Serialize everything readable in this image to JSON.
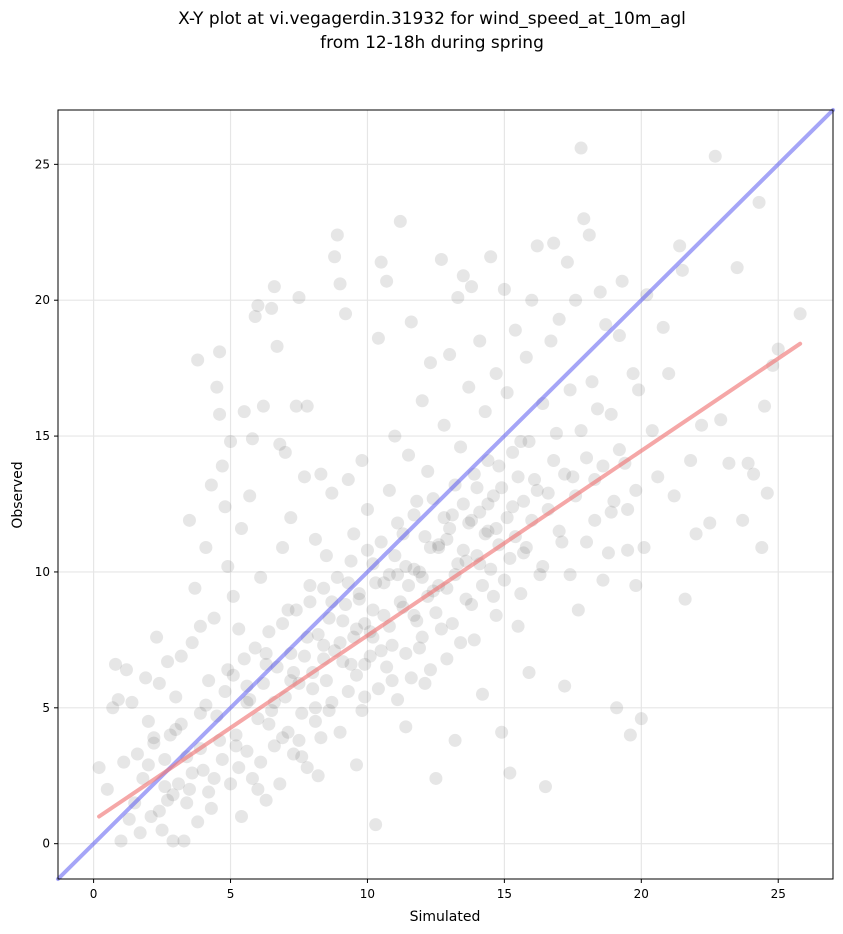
{
  "chart_data": {
    "type": "scatter",
    "title_lines": [
      "X-Y plot at vi.vegagerdin.31932 for wind_speed_at_10m_agl",
      "from 12-18h during spring"
    ],
    "xlabel": "Simulated",
    "ylabel": "Observed",
    "xlim": [
      -1.3,
      27.0
    ],
    "ylim": [
      -1.3,
      27.0
    ],
    "xticks": [
      0,
      5,
      10,
      15,
      20,
      25
    ],
    "yticks": [
      0,
      5,
      10,
      15,
      20,
      25
    ],
    "grid": true,
    "point_color": "#555555",
    "point_opacity": 0.15,
    "identity_line": {
      "color": "#4b4bf0",
      "from": [
        -1.3,
        -1.3
      ],
      "to": [
        27.0,
        27.0
      ]
    },
    "fit_line": {
      "color": "#f07878",
      "from": [
        0.2,
        1.0
      ],
      "to": [
        25.8,
        18.4
      ]
    },
    "points": [
      [
        0.2,
        2.8
      ],
      [
        0.5,
        2.0
      ],
      [
        0.7,
        5.0
      ],
      [
        0.8,
        6.6
      ],
      [
        0.9,
        5.3
      ],
      [
        1.0,
        0.1
      ],
      [
        1.1,
        3.0
      ],
      [
        1.2,
        6.4
      ],
      [
        1.4,
        5.2
      ],
      [
        1.5,
        1.5
      ],
      [
        1.6,
        3.3
      ],
      [
        1.8,
        2.4
      ],
      [
        1.9,
        6.1
      ],
      [
        2.0,
        4.5
      ],
      [
        2.1,
        1.0
      ],
      [
        2.2,
        3.7
      ],
      [
        2.3,
        7.6
      ],
      [
        2.4,
        5.9
      ],
      [
        2.5,
        0.5
      ],
      [
        2.6,
        2.1
      ],
      [
        2.7,
        6.7
      ],
      [
        2.8,
        4.0
      ],
      [
        2.9,
        1.8
      ],
      [
        3.0,
        5.4
      ],
      [
        3.2,
        6.9
      ],
      [
        3.3,
        0.1
      ],
      [
        3.4,
        3.2
      ],
      [
        3.5,
        11.9
      ],
      [
        3.6,
        7.4
      ],
      [
        3.7,
        9.4
      ],
      [
        3.8,
        17.8
      ],
      [
        3.9,
        8.0
      ],
      [
        4.0,
        2.7
      ],
      [
        4.1,
        10.9
      ],
      [
        4.2,
        6.0
      ],
      [
        4.3,
        13.2
      ],
      [
        4.4,
        8.3
      ],
      [
        4.5,
        16.8
      ],
      [
        4.6,
        18.1
      ],
      [
        4.6,
        15.8
      ],
      [
        4.7,
        13.9
      ],
      [
        4.8,
        12.4
      ],
      [
        4.9,
        10.2
      ],
      [
        5.0,
        14.8
      ],
      [
        5.1,
        9.1
      ],
      [
        5.2,
        3.6
      ],
      [
        5.3,
        7.9
      ],
      [
        5.4,
        11.6
      ],
      [
        5.5,
        15.9
      ],
      [
        5.6,
        5.2
      ],
      [
        5.7,
        12.8
      ],
      [
        5.8,
        14.9
      ],
      [
        5.9,
        19.4
      ],
      [
        6.0,
        19.8
      ],
      [
        6.1,
        9.8
      ],
      [
        6.2,
        16.1
      ],
      [
        6.3,
        7.0
      ],
      [
        6.4,
        4.4
      ],
      [
        6.5,
        19.7
      ],
      [
        6.6,
        20.5
      ],
      [
        6.7,
        18.3
      ],
      [
        6.8,
        14.7
      ],
      [
        6.9,
        10.9
      ],
      [
        7.0,
        14.4
      ],
      [
        7.1,
        8.6
      ],
      [
        7.2,
        12.0
      ],
      [
        7.3,
        6.3
      ],
      [
        7.4,
        16.1
      ],
      [
        7.5,
        20.1
      ],
      [
        7.6,
        3.2
      ],
      [
        7.7,
        13.5
      ],
      [
        7.8,
        16.1
      ],
      [
        7.9,
        9.5
      ],
      [
        8.0,
        5.7
      ],
      [
        8.1,
        11.2
      ],
      [
        8.2,
        2.5
      ],
      [
        8.3,
        13.6
      ],
      [
        8.4,
        7.3
      ],
      [
        8.5,
        10.6
      ],
      [
        8.6,
        4.9
      ],
      [
        8.7,
        12.9
      ],
      [
        8.8,
        21.6
      ],
      [
        8.9,
        22.4
      ],
      [
        9.0,
        20.6
      ],
      [
        9.1,
        8.2
      ],
      [
        9.2,
        19.5
      ],
      [
        9.3,
        13.4
      ],
      [
        9.4,
        6.6
      ],
      [
        9.5,
        11.4
      ],
      [
        9.6,
        2.9
      ],
      [
        9.7,
        9.0
      ],
      [
        9.8,
        14.1
      ],
      [
        9.9,
        5.4
      ],
      [
        10.0,
        12.3
      ],
      [
        10.1,
        7.8
      ],
      [
        10.2,
        10.3
      ],
      [
        10.3,
        0.7
      ],
      [
        10.4,
        18.6
      ],
      [
        10.5,
        21.4
      ],
      [
        10.6,
        9.6
      ],
      [
        10.7,
        20.7
      ],
      [
        10.8,
        13.0
      ],
      [
        10.9,
        6.0
      ],
      [
        11.0,
        15.0
      ],
      [
        11.1,
        11.8
      ],
      [
        11.2,
        22.9
      ],
      [
        11.3,
        8.7
      ],
      [
        11.4,
        4.3
      ],
      [
        11.5,
        14.3
      ],
      [
        11.6,
        19.2
      ],
      [
        11.7,
        10.1
      ],
      [
        11.8,
        12.6
      ],
      [
        11.9,
        7.2
      ],
      [
        12.0,
        16.3
      ],
      [
        12.1,
        5.9
      ],
      [
        12.2,
        13.7
      ],
      [
        12.3,
        17.7
      ],
      [
        12.4,
        9.3
      ],
      [
        12.5,
        2.4
      ],
      [
        12.6,
        11.0
      ],
      [
        12.7,
        21.5
      ],
      [
        12.8,
        15.4
      ],
      [
        12.9,
        6.8
      ],
      [
        13.0,
        18.0
      ],
      [
        13.1,
        12.1
      ],
      [
        13.2,
        3.8
      ],
      [
        13.3,
        20.1
      ],
      [
        13.4,
        14.6
      ],
      [
        13.5,
        20.9
      ],
      [
        13.6,
        10.4
      ],
      [
        13.7,
        16.8
      ],
      [
        13.8,
        20.5
      ],
      [
        13.9,
        7.5
      ],
      [
        14.0,
        13.1
      ],
      [
        14.1,
        18.5
      ],
      [
        14.2,
        5.5
      ],
      [
        14.3,
        15.9
      ],
      [
        14.4,
        11.5
      ],
      [
        14.5,
        21.6
      ],
      [
        14.6,
        9.1
      ],
      [
        14.7,
        17.3
      ],
      [
        14.8,
        13.9
      ],
      [
        14.9,
        4.1
      ],
      [
        15.0,
        20.4
      ],
      [
        15.1,
        16.6
      ],
      [
        15.2,
        2.6
      ],
      [
        15.3,
        12.4
      ],
      [
        15.4,
        18.9
      ],
      [
        15.5,
        8.0
      ],
      [
        15.6,
        14.8
      ],
      [
        15.7,
        10.7
      ],
      [
        15.8,
        17.9
      ],
      [
        15.9,
        6.3
      ],
      [
        16.0,
        20.0
      ],
      [
        16.1,
        13.4
      ],
      [
        16.2,
        22.0
      ],
      [
        16.3,
        9.9
      ],
      [
        16.4,
        16.2
      ],
      [
        16.5,
        2.1
      ],
      [
        16.6,
        12.9
      ],
      [
        16.7,
        18.5
      ],
      [
        16.8,
        22.1
      ],
      [
        16.9,
        15.1
      ],
      [
        17.0,
        19.3
      ],
      [
        17.1,
        11.1
      ],
      [
        17.2,
        5.8
      ],
      [
        17.3,
        21.4
      ],
      [
        17.4,
        16.7
      ],
      [
        17.5,
        13.5
      ],
      [
        17.6,
        20.0
      ],
      [
        17.7,
        8.6
      ],
      [
        17.8,
        25.6
      ],
      [
        17.9,
        23.0
      ],
      [
        18.0,
        14.2
      ],
      [
        18.1,
        22.4
      ],
      [
        18.2,
        17.0
      ],
      [
        18.3,
        11.9
      ],
      [
        18.4,
        16.0
      ],
      [
        18.5,
        20.3
      ],
      [
        18.6,
        13.9
      ],
      [
        18.7,
        19.1
      ],
      [
        18.8,
        10.7
      ],
      [
        18.9,
        15.8
      ],
      [
        19.0,
        12.6
      ],
      [
        19.1,
        5.0
      ],
      [
        19.2,
        18.7
      ],
      [
        19.3,
        20.7
      ],
      [
        19.4,
        14.0
      ],
      [
        19.5,
        12.3
      ],
      [
        19.6,
        4.0
      ],
      [
        19.7,
        17.3
      ],
      [
        19.8,
        9.5
      ],
      [
        19.9,
        16.7
      ],
      [
        20.0,
        4.6
      ],
      [
        20.1,
        10.9
      ],
      [
        20.2,
        20.2
      ],
      [
        20.4,
        15.2
      ],
      [
        20.6,
        13.5
      ],
      [
        20.8,
        19.0
      ],
      [
        21.0,
        17.3
      ],
      [
        21.2,
        12.8
      ],
      [
        21.4,
        22.0
      ],
      [
        21.5,
        21.1
      ],
      [
        21.6,
        9.0
      ],
      [
        21.8,
        14.1
      ],
      [
        22.0,
        11.4
      ],
      [
        22.2,
        15.4
      ],
      [
        22.5,
        11.8
      ],
      [
        22.7,
        25.3
      ],
      [
        22.9,
        15.6
      ],
      [
        23.2,
        14.0
      ],
      [
        23.5,
        21.2
      ],
      [
        23.7,
        11.9
      ],
      [
        23.9,
        14.0
      ],
      [
        24.1,
        13.6
      ],
      [
        24.3,
        23.6
      ],
      [
        24.4,
        10.9
      ],
      [
        24.5,
        16.1
      ],
      [
        24.6,
        12.9
      ],
      [
        24.8,
        17.6
      ],
      [
        25.0,
        18.2
      ],
      [
        25.8,
        19.5
      ],
      [
        1.3,
        0.9
      ],
      [
        1.7,
        0.4
      ],
      [
        2.0,
        2.9
      ],
      [
        2.4,
        1.2
      ],
      [
        2.6,
        3.1
      ],
      [
        2.9,
        0.1
      ],
      [
        3.1,
        2.2
      ],
      [
        3.2,
        4.4
      ],
      [
        3.4,
        1.5
      ],
      [
        3.6,
        2.6
      ],
      [
        3.8,
        0.8
      ],
      [
        3.9,
        3.5
      ],
      [
        4.1,
        5.1
      ],
      [
        4.2,
        1.9
      ],
      [
        4.4,
        2.4
      ],
      [
        4.5,
        4.7
      ],
      [
        4.7,
        3.1
      ],
      [
        4.8,
        5.6
      ],
      [
        5.0,
        2.2
      ],
      [
        5.1,
        6.2
      ],
      [
        5.2,
        4.0
      ],
      [
        5.4,
        1.0
      ],
      [
        5.5,
        6.8
      ],
      [
        5.6,
        3.4
      ],
      [
        5.7,
        5.3
      ],
      [
        5.8,
        2.4
      ],
      [
        5.9,
        7.2
      ],
      [
        6.0,
        4.6
      ],
      [
        6.1,
        3.0
      ],
      [
        6.2,
        5.9
      ],
      [
        6.3,
        1.6
      ],
      [
        6.4,
        7.8
      ],
      [
        6.5,
        4.9
      ],
      [
        6.6,
        3.6
      ],
      [
        6.7,
        6.5
      ],
      [
        6.8,
        2.2
      ],
      [
        6.9,
        8.1
      ],
      [
        7.0,
        5.4
      ],
      [
        7.1,
        4.1
      ],
      [
        7.2,
        7.0
      ],
      [
        7.3,
        3.3
      ],
      [
        7.4,
        8.6
      ],
      [
        7.5,
        5.9
      ],
      [
        7.6,
        4.8
      ],
      [
        7.7,
        6.9
      ],
      [
        7.8,
        2.8
      ],
      [
        7.9,
        8.9
      ],
      [
        8.0,
        6.3
      ],
      [
        8.1,
        4.5
      ],
      [
        8.2,
        7.7
      ],
      [
        8.3,
        3.9
      ],
      [
        8.4,
        9.4
      ],
      [
        8.5,
        6.0
      ],
      [
        8.6,
        8.3
      ],
      [
        8.7,
        5.2
      ],
      [
        8.8,
        7.1
      ],
      [
        8.9,
        9.8
      ],
      [
        9.0,
        4.1
      ],
      [
        9.1,
        6.7
      ],
      [
        9.2,
        8.8
      ],
      [
        9.3,
        5.6
      ],
      [
        9.4,
        10.4
      ],
      [
        9.5,
        7.6
      ],
      [
        9.6,
        6.2
      ],
      [
        9.7,
        9.2
      ],
      [
        9.8,
        4.9
      ],
      [
        9.9,
        8.1
      ],
      [
        10.0,
        10.8
      ],
      [
        10.1,
        6.9
      ],
      [
        10.2,
        7.6
      ],
      [
        10.3,
        9.6
      ],
      [
        10.4,
        5.7
      ],
      [
        10.5,
        11.1
      ],
      [
        10.6,
        8.4
      ],
      [
        10.7,
        6.5
      ],
      [
        10.8,
        9.9
      ],
      [
        10.9,
        7.3
      ],
      [
        11.0,
        10.6
      ],
      [
        11.1,
        5.3
      ],
      [
        11.2,
        8.9
      ],
      [
        11.3,
        11.4
      ],
      [
        11.4,
        7.0
      ],
      [
        11.5,
        9.5
      ],
      [
        11.6,
        6.1
      ],
      [
        11.7,
        12.1
      ],
      [
        11.8,
        8.2
      ],
      [
        11.9,
        10.0
      ],
      [
        12.0,
        7.6
      ],
      [
        12.1,
        11.3
      ],
      [
        12.2,
        9.1
      ],
      [
        12.3,
        6.4
      ],
      [
        12.4,
        12.7
      ],
      [
        12.5,
        8.5
      ],
      [
        12.6,
        10.9
      ],
      [
        12.7,
        7.9
      ],
      [
        12.8,
        12.0
      ],
      [
        12.9,
        9.4
      ],
      [
        13.0,
        11.6
      ],
      [
        13.1,
        8.1
      ],
      [
        13.2,
        13.2
      ],
      [
        13.3,
        10.3
      ],
      [
        13.4,
        7.4
      ],
      [
        13.5,
        12.5
      ],
      [
        13.6,
        9.0
      ],
      [
        13.7,
        11.8
      ],
      [
        13.8,
        8.8
      ],
      [
        13.9,
        13.6
      ],
      [
        14.0,
        10.6
      ],
      [
        14.1,
        12.2
      ],
      [
        14.2,
        9.5
      ],
      [
        14.3,
        11.4
      ],
      [
        14.4,
        14.1
      ],
      [
        14.5,
        10.1
      ],
      [
        14.6,
        12.8
      ],
      [
        14.7,
        8.4
      ],
      [
        14.8,
        11.0
      ],
      [
        14.9,
        13.1
      ],
      [
        15.0,
        9.7
      ],
      [
        15.1,
        12.0
      ],
      [
        15.2,
        10.5
      ],
      [
        15.3,
        14.4
      ],
      [
        15.4,
        11.3
      ],
      [
        15.5,
        13.5
      ],
      [
        15.6,
        9.2
      ],
      [
        15.7,
        12.6
      ],
      [
        15.8,
        10.9
      ],
      [
        15.9,
        14.8
      ],
      [
        16.0,
        11.9
      ],
      [
        16.2,
        13.0
      ],
      [
        16.4,
        10.2
      ],
      [
        16.6,
        12.3
      ],
      [
        16.8,
        14.1
      ],
      [
        17.0,
        11.5
      ],
      [
        17.2,
        13.6
      ],
      [
        17.4,
        9.9
      ],
      [
        17.6,
        12.8
      ],
      [
        17.8,
        15.2
      ],
      [
        18.0,
        11.1
      ],
      [
        18.3,
        13.4
      ],
      [
        18.6,
        9.7
      ],
      [
        18.9,
        12.2
      ],
      [
        19.2,
        14.5
      ],
      [
        19.5,
        10.8
      ],
      [
        19.8,
        13.0
      ],
      [
        2.2,
        3.9
      ],
      [
        2.7,
        1.6
      ],
      [
        3.0,
        4.2
      ],
      [
        3.5,
        2.0
      ],
      [
        3.9,
        4.8
      ],
      [
        4.3,
        1.3
      ],
      [
        4.6,
        3.8
      ],
      [
        4.9,
        6.4
      ],
      [
        5.3,
        2.8
      ],
      [
        5.6,
        5.8
      ],
      [
        6.0,
        2.0
      ],
      [
        6.3,
        6.6
      ],
      [
        6.6,
        5.2
      ],
      [
        6.9,
        3.9
      ],
      [
        7.2,
        6.0
      ],
      [
        7.5,
        3.8
      ],
      [
        7.8,
        7.6
      ],
      [
        8.1,
        5.0
      ],
      [
        8.4,
        6.8
      ],
      [
        8.7,
        8.9
      ],
      [
        9.0,
        7.4
      ],
      [
        9.3,
        9.6
      ],
      [
        9.6,
        7.9
      ],
      [
        9.9,
        6.6
      ],
      [
        10.2,
        8.6
      ],
      [
        10.5,
        7.1
      ],
      [
        10.8,
        8.0
      ],
      [
        11.1,
        9.9
      ],
      [
        11.4,
        10.2
      ],
      [
        11.7,
        8.4
      ],
      [
        12.0,
        9.8
      ],
      [
        12.3,
        10.9
      ],
      [
        12.6,
        9.5
      ],
      [
        12.9,
        11.2
      ],
      [
        13.2,
        9.9
      ],
      [
        13.5,
        10.8
      ],
      [
        13.8,
        11.9
      ],
      [
        14.1,
        10.3
      ],
      [
        14.4,
        12.5
      ],
      [
        14.7,
        11.6
      ]
    ]
  }
}
